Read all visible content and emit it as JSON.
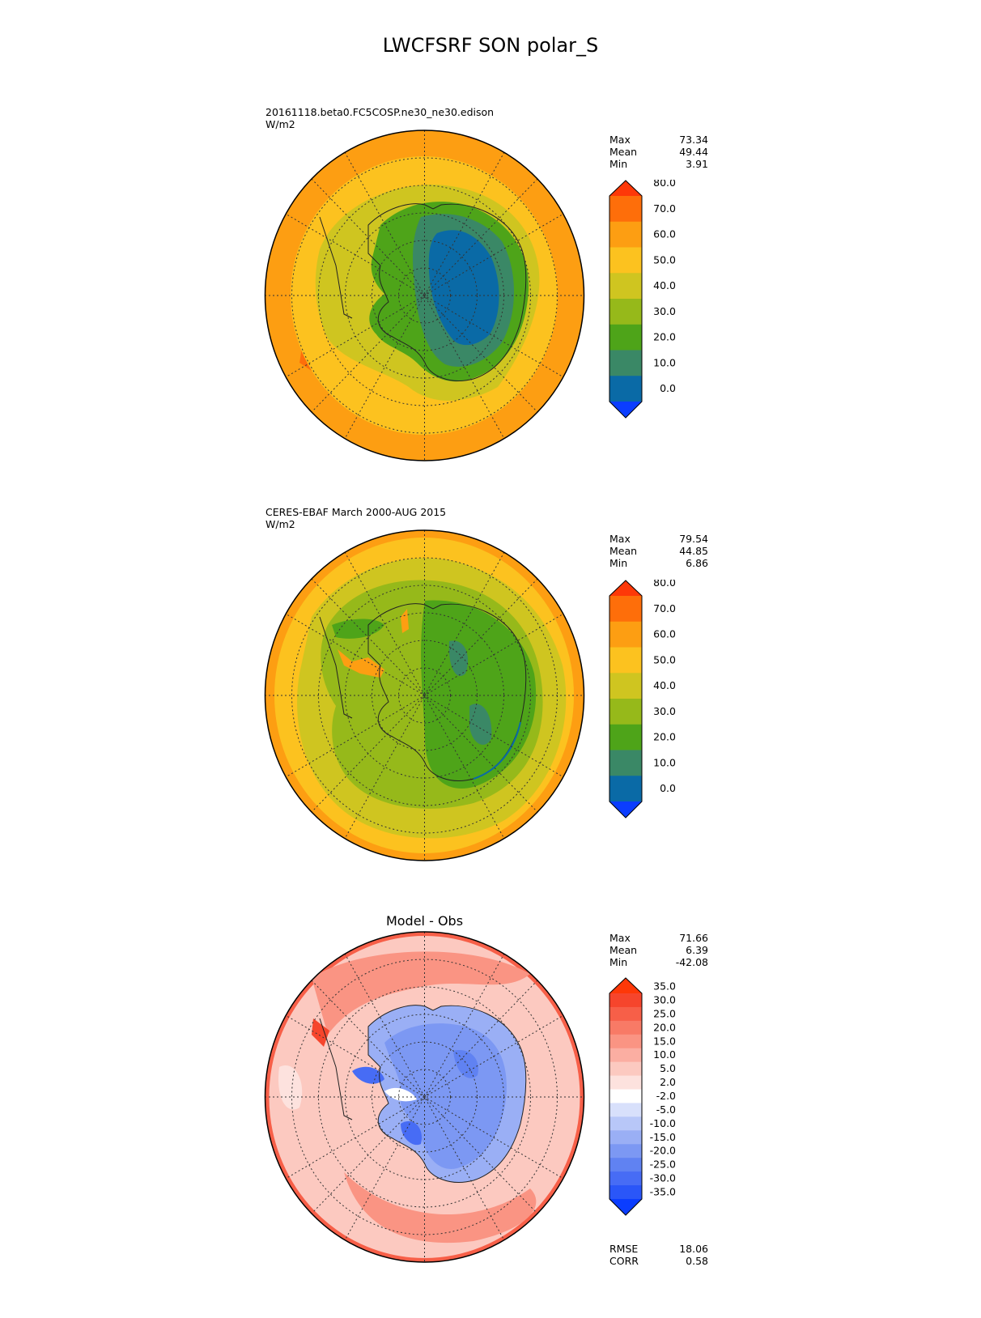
{
  "title": "LWCFSRF SON polar_S",
  "panels": [
    {
      "id": "test",
      "case_name": "20161118.beta0.FC5COSP.ne30_ne30.edison",
      "units": "W/m2",
      "stats": {
        "max_label": "Max",
        "max": "73.34",
        "mean_label": "Mean",
        "mean": "49.44",
        "min_label": "Min",
        "min": "3.91"
      },
      "colorbar": {
        "levels": [
          "0.0",
          "10.0",
          "20.0",
          "30.0",
          "40.0",
          "50.0",
          "60.0",
          "70.0",
          "80.0"
        ],
        "colors": [
          "#0b3dff",
          "#0a6aa6",
          "#3a8866",
          "#4ea419",
          "#96b91a",
          "#cfc520",
          "#fcc21f",
          "#fd9e12",
          "#fe6e0a",
          "#fe3808"
        ]
      }
    },
    {
      "id": "reference",
      "case_name": "CERES-EBAF March 2000-AUG 2015",
      "units": "W/m2",
      "stats": {
        "max_label": "Max",
        "max": "79.54",
        "mean_label": "Mean",
        "mean": "44.85",
        "min_label": "Min",
        "min": "6.86"
      },
      "colorbar": {
        "levels": [
          "0.0",
          "10.0",
          "20.0",
          "30.0",
          "40.0",
          "50.0",
          "60.0",
          "70.0",
          "80.0"
        ],
        "colors": [
          "#0b3dff",
          "#0a6aa6",
          "#3a8866",
          "#4ea419",
          "#96b91a",
          "#cfc520",
          "#fcc21f",
          "#fd9e12",
          "#fe6e0a",
          "#fe3808"
        ]
      }
    },
    {
      "id": "diff",
      "plot_title": "Model - Obs",
      "stats": {
        "max_label": "Max",
        "max": "71.66",
        "mean_label": "Mean",
        "mean": "6.39",
        "min_label": "Min",
        "min": "-42.08"
      },
      "metrics": {
        "rmse_label": "RMSE",
        "rmse": "18.06",
        "corr_label": "CORR",
        "corr": "0.58"
      },
      "colorbar": {
        "levels": [
          "-35.0",
          "-30.0",
          "-25.0",
          "-20.0",
          "-15.0",
          "-10.0",
          "-5.0",
          "-2.0",
          "2.0",
          "5.0",
          "10.0",
          "15.0",
          "20.0",
          "25.0",
          "30.0",
          "35.0"
        ],
        "colors": [
          "#0b3dff",
          "#2a56f8",
          "#476cf5",
          "#6082f2",
          "#7c98f3",
          "#9aaff5",
          "#b8c7f8",
          "#d8e0fb",
          "#ffffff",
          "#fde2de",
          "#fcc9c0",
          "#fbaea2",
          "#fa9483",
          "#f87a66",
          "#f75f48",
          "#f6452c",
          "#fe3808"
        ]
      }
    }
  ]
}
